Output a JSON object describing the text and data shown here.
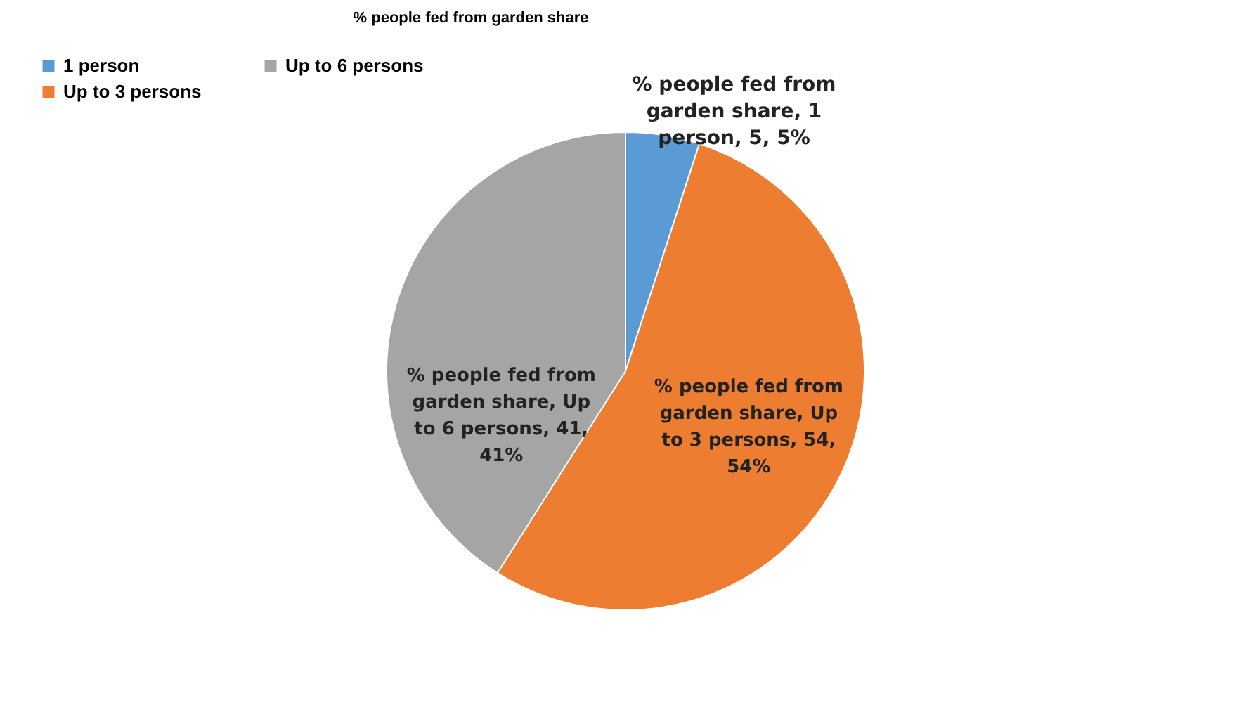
{
  "chart_data": {
    "type": "pie",
    "title": "% people fed from garden share",
    "categories": [
      "1 person",
      "Up to 3 persons",
      "Up to 6 persons"
    ],
    "values": [
      5,
      54,
      41
    ],
    "colors": [
      "#5b9bd5",
      "#ed7d31",
      "#a5a5a5"
    ],
    "value_labels": [
      "% people fed from garden share, 1 person, 5, 5%",
      "% people fed from garden share, Up to 3 persons, 54, 54%",
      "% people fed from garden share, Up to 6 persons, 41, 41%"
    ],
    "legend": "top left"
  }
}
